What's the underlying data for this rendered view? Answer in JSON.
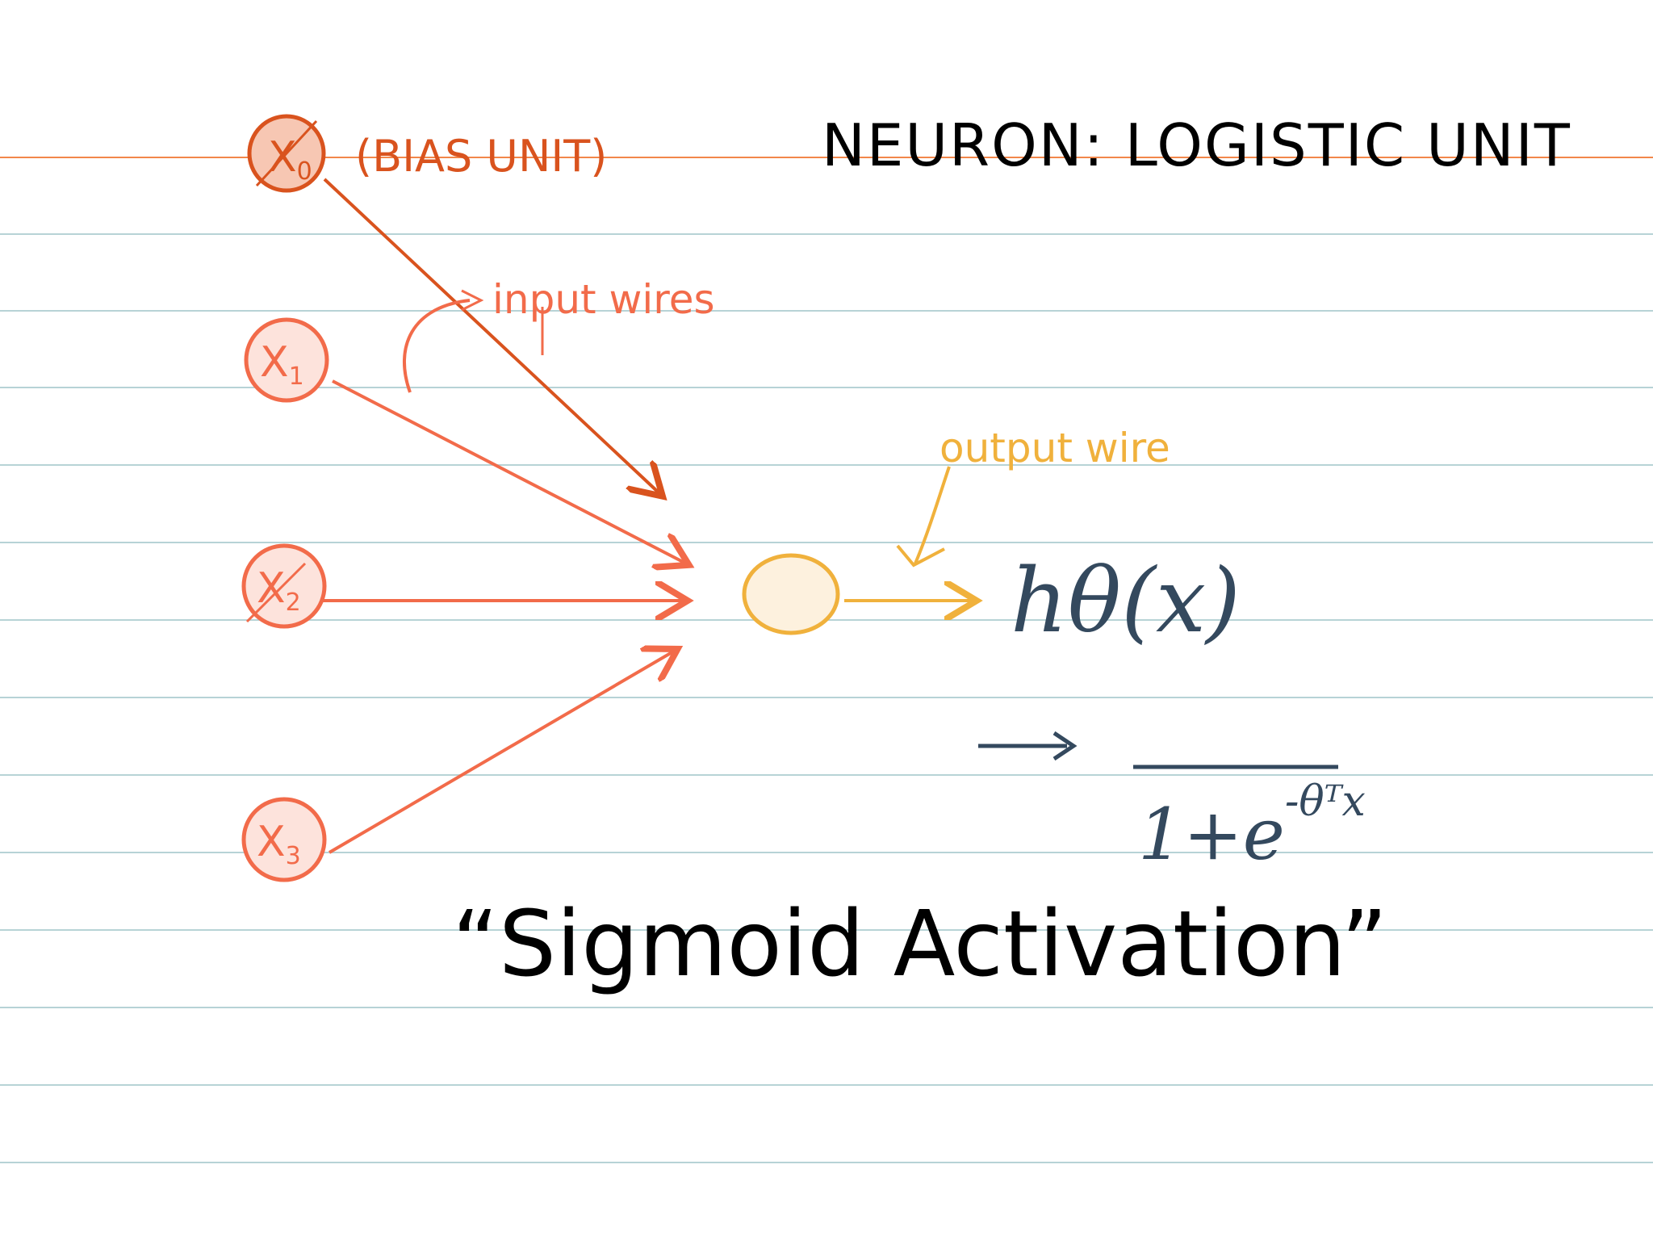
{
  "title": "NEURON: LOGISTIC UNIT",
  "inputs": [
    {
      "label": "X0",
      "sub": "0",
      "note": "(BIAS UNIT)"
    },
    {
      "label": "X1",
      "sub": "1"
    },
    {
      "label": "X2",
      "sub": "2"
    },
    {
      "label": "X3",
      "sub": "3"
    }
  ],
  "input_wires_label": "input wires",
  "output_wire_label": "output wire",
  "hypothesis": "hθ(x)",
  "sigmoid_formula": {
    "numerator": "",
    "denominator_base": "1+e",
    "exponent": "-θᵀx"
  },
  "caption": "“Sigmoid Activation”",
  "colors": {
    "bias": "#d9531e",
    "input": "#f26b4a",
    "input_fill": "#fde3dc",
    "bias_fill": "#f7c7b3",
    "neuron": "#f0b13c",
    "neuron_fill": "#fdf1de",
    "ink_dark": "#000000",
    "ink_slate": "#34495e",
    "rule_line": "#b7d3d6",
    "margin_line": "#f2874a"
  }
}
